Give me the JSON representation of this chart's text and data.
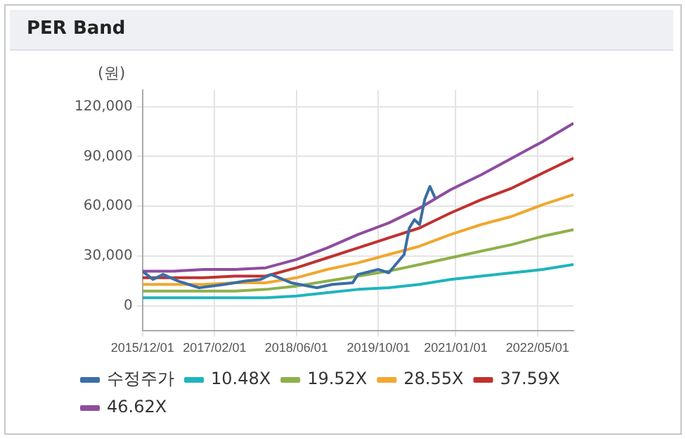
{
  "chart_data": {
    "type": "line",
    "title": "PER Band",
    "ylabel": "(원)",
    "x": [
      "2015-12",
      "2016-06",
      "2016-12",
      "2017-06",
      "2017-12",
      "2018-06",
      "2018-12",
      "2019-06",
      "2019-12",
      "2020-06",
      "2020-12",
      "2021-06",
      "2021-12",
      "2022-06",
      "2022-12"
    ],
    "series": [
      {
        "name": "수정주가",
        "color": "#3a6ea5",
        "x": [
          "2015-12",
          "2016-02",
          "2016-04",
          "2016-07",
          "2016-11",
          "2017-04",
          "2017-08",
          "2017-11",
          "2018-01",
          "2018-05",
          "2018-10",
          "2019-01",
          "2019-05",
          "2019-06",
          "2019-10",
          "2019-12",
          "2020-03",
          "2020-04",
          "2020-05",
          "2020-06",
          "2020-07",
          "2020-08",
          "2020-09"
        ],
        "values": [
          21000,
          16000,
          19000,
          15000,
          11000,
          13000,
          15000,
          16000,
          19000,
          14000,
          11000,
          13000,
          14000,
          19000,
          22000,
          20000,
          31000,
          47000,
          52000,
          49000,
          64000,
          72000,
          65000
        ]
      },
      {
        "name": "10.48X",
        "color": "#1fb4bd",
        "values": [
          5000,
          5000,
          5000,
          5000,
          5000,
          6000,
          8000,
          10000,
          11000,
          13000,
          16000,
          18000,
          20000,
          22000,
          25000
        ]
      },
      {
        "name": "19.52X",
        "color": "#8fb04a",
        "values": [
          9000,
          9000,
          9000,
          9000,
          10000,
          12000,
          15000,
          18000,
          21000,
          25000,
          29000,
          33000,
          37000,
          42000,
          46000
        ]
      },
      {
        "name": "28.55X",
        "color": "#f0a830",
        "values": [
          13000,
          13000,
          13000,
          14000,
          14000,
          17000,
          22000,
          26000,
          31000,
          36000,
          43000,
          49000,
          54000,
          61000,
          67000
        ]
      },
      {
        "name": "37.59X",
        "color": "#c0312f",
        "values": [
          17000,
          17000,
          17000,
          18000,
          18000,
          23000,
          29000,
          35000,
          41000,
          47000,
          56000,
          64000,
          71000,
          80000,
          89000
        ]
      },
      {
        "name": "46.62X",
        "color": "#8e4d9e",
        "values": [
          21000,
          21000,
          22000,
          22000,
          23000,
          28000,
          35000,
          43000,
          50000,
          59000,
          70000,
          79000,
          89000,
          99000,
          110000
        ]
      }
    ],
    "xlim": [
      "2015-12",
      "2022-12"
    ],
    "xticks": [
      {
        "value": "2015-12",
        "label": "2015/12/01"
      },
      {
        "value": "2017-02",
        "label": "2017/02/01"
      },
      {
        "value": "2018-06",
        "label": "2018/06/01"
      },
      {
        "value": "2019-10",
        "label": "2019/10/01"
      },
      {
        "value": "2021-01",
        "label": "2021/01/01"
      },
      {
        "value": "2022-05",
        "label": "2022/05/01"
      }
    ],
    "ylim": [
      -15000,
      130000
    ],
    "yticks": [
      {
        "value": 0,
        "label": "0"
      },
      {
        "value": 30000,
        "label": "30,000"
      },
      {
        "value": 60000,
        "label": "60,000"
      },
      {
        "value": 90000,
        "label": "90,000"
      },
      {
        "value": 120000,
        "label": "120,000"
      }
    ],
    "grid": true,
    "legend": "bottom",
    "marker": "none",
    "line_style": "solid"
  }
}
